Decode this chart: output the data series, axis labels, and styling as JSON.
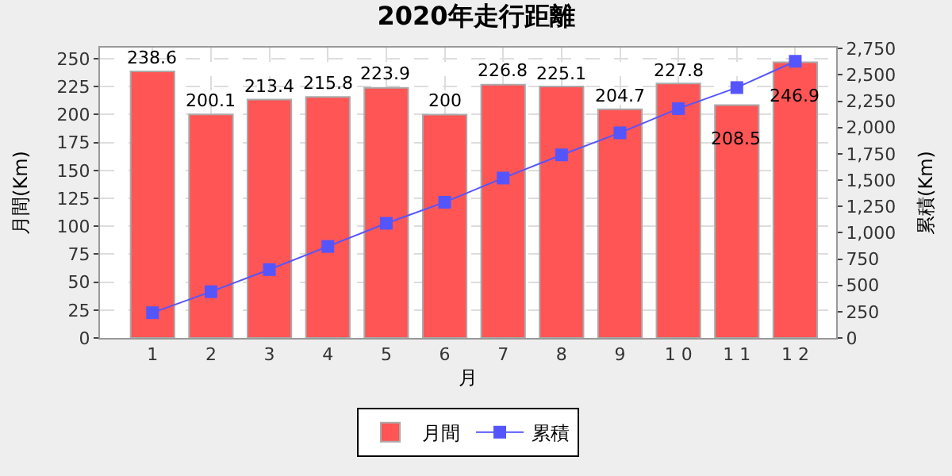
{
  "chart_data": {
    "type": "line",
    "title": "2020年走行距離",
    "xlabel": "月",
    "ylabel": "月間(Km)",
    "y2label": "累積(Km)",
    "categories": [
      "1",
      "2",
      "3",
      "4",
      "5",
      "6",
      "7",
      "8",
      "9",
      "1 0",
      "1 1",
      "1 2"
    ],
    "series": [
      {
        "name": "月間",
        "type": "bar",
        "color": "#ff5555",
        "values": [
          238.6,
          200.1,
          213.4,
          215.8,
          223.9,
          200,
          226.8,
          225.1,
          204.7,
          227.8,
          208.5,
          246.9
        ],
        "value_labels": [
          "238.6",
          "200.1",
          "213.4",
          "215.8",
          "223.9",
          "200",
          "226.8",
          "225.1",
          "204.7",
          "227.8",
          "208.5",
          "246.9"
        ]
      },
      {
        "name": "累積",
        "axis": "y2",
        "color": "#5555ff",
        "marker": "square",
        "values": [
          240,
          440,
          650,
          870,
          1090,
          1290,
          1520,
          1740,
          1950,
          2180,
          2380,
          2630
        ]
      }
    ],
    "ylim": [
      0,
      260
    ],
    "yticks": [
      0,
      25,
      50,
      75,
      100,
      125,
      150,
      175,
      200,
      225,
      250
    ],
    "y2lim": [
      0,
      2760
    ],
    "y2ticks": [
      {
        "value": 0,
        "label": "0"
      },
      {
        "value": 250,
        "label": "250"
      },
      {
        "value": 500,
        "label": "500"
      },
      {
        "value": 750,
        "label": "750"
      },
      {
        "value": 1000,
        "label": "1,000"
      },
      {
        "value": 1250,
        "label": "1,250"
      },
      {
        "value": 1500,
        "label": "1,500"
      },
      {
        "value": 1750,
        "label": "1,750"
      },
      {
        "value": 2000,
        "label": "2,000"
      },
      {
        "value": 2250,
        "label": "2,250"
      },
      {
        "value": 2500,
        "label": "2,500"
      },
      {
        "value": 2750,
        "label": "2,750"
      }
    ],
    "grid": true,
    "legend": "bottom"
  }
}
